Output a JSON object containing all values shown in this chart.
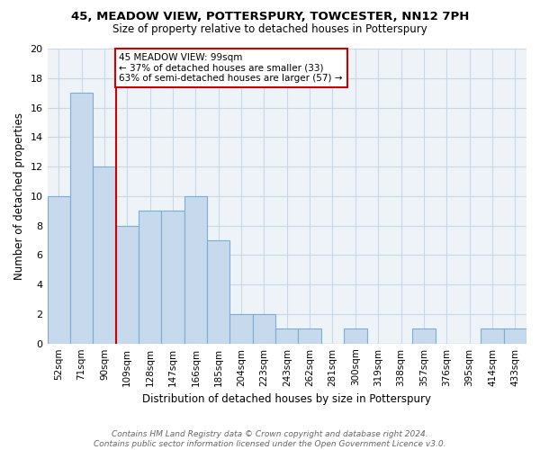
{
  "title1": "45, MEADOW VIEW, POTTERSPURY, TOWCESTER, NN12 7PH",
  "title2": "Size of property relative to detached houses in Potterspury",
  "xlabel": "Distribution of detached houses by size in Potterspury",
  "ylabel": "Number of detached properties",
  "bar_labels": [
    "52sqm",
    "71sqm",
    "90sqm",
    "109sqm",
    "128sqm",
    "147sqm",
    "166sqm",
    "185sqm",
    "204sqm",
    "223sqm",
    "243sqm",
    "262sqm",
    "281sqm",
    "300sqm",
    "319sqm",
    "338sqm",
    "357sqm",
    "376sqm",
    "395sqm",
    "414sqm",
    "433sqm"
  ],
  "bar_values": [
    10,
    17,
    12,
    8,
    9,
    9,
    10,
    7,
    2,
    2,
    1,
    1,
    0,
    1,
    0,
    0,
    1,
    0,
    0,
    1,
    1
  ],
  "bar_color": "#c6d9ed",
  "bar_edge_color": "#7aafd4",
  "vline_color": "#cc0000",
  "annotation_text": "45 MEADOW VIEW: 99sqm\n← 37% of detached houses are smaller (33)\n63% of semi-detached houses are larger (57) →",
  "annotation_box_color": "#ffffff",
  "annotation_box_edge": "#cc0000",
  "ylim": [
    0,
    20
  ],
  "yticks": [
    0,
    2,
    4,
    6,
    8,
    10,
    12,
    14,
    16,
    18,
    20
  ],
  "grid_color": "#c8d8e8",
  "footer_text": "Contains HM Land Registry data © Crown copyright and database right 2024.\nContains public sector information licensed under the Open Government Licence v3.0.",
  "bg_color": "#ffffff",
  "title_fontsize": 9.5,
  "subtitle_fontsize": 8.5
}
